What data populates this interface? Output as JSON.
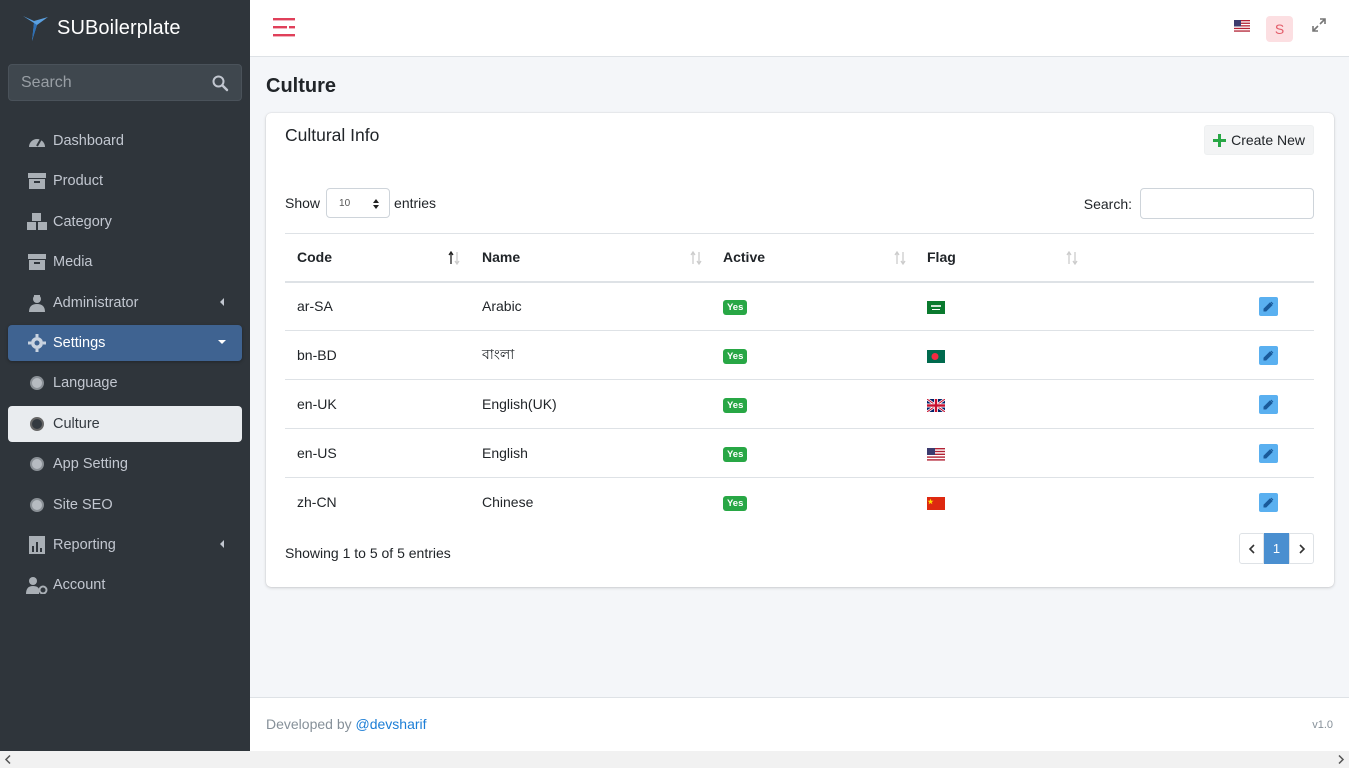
{
  "brand": {
    "name": "SUBoilerplate"
  },
  "sidebar": {
    "search_placeholder": "Search",
    "items": [
      {
        "label": "Dashboard",
        "icon": "dashboard-icon"
      },
      {
        "label": "Product",
        "icon": "archive-icon"
      },
      {
        "label": "Category",
        "icon": "boxes-icon"
      },
      {
        "label": "Media",
        "icon": "archive-icon"
      },
      {
        "label": "Administrator",
        "icon": "user-tie-icon",
        "has_submenu": true
      },
      {
        "label": "Settings",
        "icon": "gear-icon",
        "expanded": true
      },
      {
        "label": "Language",
        "icon": "circle-icon"
      },
      {
        "label": "Culture",
        "icon": "circle-icon",
        "active": true
      },
      {
        "label": "App Setting",
        "icon": "circle-icon"
      },
      {
        "label": "Site SEO",
        "icon": "circle-icon"
      },
      {
        "label": "Reporting",
        "icon": "chart-icon",
        "has_submenu": true
      },
      {
        "label": "Account",
        "icon": "user-cog-icon"
      }
    ]
  },
  "topbar": {
    "avatar_letter": "S"
  },
  "page": {
    "title": "Culture"
  },
  "card": {
    "title": "Cultural Info",
    "create_label": "Create New",
    "show_label": "Show",
    "entries_value": "10",
    "entries_label": "entries",
    "search_label": "Search:",
    "columns": [
      "Code",
      "Name",
      "Active",
      "Flag"
    ],
    "rows": [
      {
        "code": "ar-SA",
        "name": "Arabic",
        "active": "Yes",
        "flag": "sa"
      },
      {
        "code": "bn-BD",
        "name": "বাংলা",
        "active": "Yes",
        "flag": "bd"
      },
      {
        "code": "en-UK",
        "name": "English(UK)",
        "active": "Yes",
        "flag": "gb"
      },
      {
        "code": "en-US",
        "name": "English",
        "active": "Yes",
        "flag": "us"
      },
      {
        "code": "zh-CN",
        "name": "Chinese",
        "active": "Yes",
        "flag": "cn"
      }
    ],
    "info": "Showing 1 to 5 of 5 entries",
    "current_page": "1"
  },
  "footer": {
    "dev_text": "Developed by",
    "dev_link": "@devsharif",
    "version": "v1.0"
  },
  "colors": {
    "sidebar_bg": "#2f353b",
    "active_blue": "#3f6391",
    "badge_green": "#28a745",
    "link": "#1c7ed6"
  }
}
